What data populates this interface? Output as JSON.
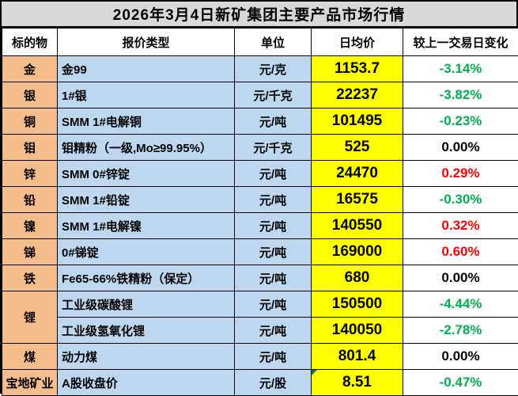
{
  "title": "2026年3月4日新矿集团主要产品市场行情",
  "colors": {
    "title_bg": "#d9d9d9",
    "subject_col_bg": "#f5bd8b",
    "type_unit_col_bg": "#bdd7ee",
    "price_col_bg": "#ffff00",
    "change_negative": "#00b050",
    "change_positive": "#ff0000",
    "change_zero": "#000000",
    "cell_flag": "#1e7145"
  },
  "table": {
    "headers": {
      "subject": "标的物",
      "type": "报价类型",
      "unit": "单位",
      "price": "日均价",
      "change": "较上一交易日变化"
    },
    "rows": [
      {
        "subject": "金",
        "type": "金99",
        "unit": "元/克",
        "price": "1153.7",
        "change": "-3.14%",
        "trend": "down"
      },
      {
        "subject": "银",
        "type": "1#银",
        "unit": "元/千克",
        "price": "22237",
        "change": "-3.82%",
        "trend": "down"
      },
      {
        "subject": "铜",
        "type": "SMM 1#电解铜",
        "unit": "元/吨",
        "price": "101495",
        "change": "-0.23%",
        "trend": "down"
      },
      {
        "subject": "钼",
        "type": "钼精粉（一级,Mo≥99.95%）",
        "unit": "元/千克",
        "price": "525",
        "change": "0.00%",
        "trend": "flat"
      },
      {
        "subject": "锌",
        "type": "SMM 0#锌锭",
        "unit": "元/吨",
        "price": "24470",
        "change": "0.29%",
        "trend": "up"
      },
      {
        "subject": "铅",
        "type": "SMM 1#铅锭",
        "unit": "元/吨",
        "price": "16575",
        "change": "-0.30%",
        "trend": "down"
      },
      {
        "subject": "镍",
        "type": "SMM 1#电解镍",
        "unit": "元/吨",
        "price": "140550",
        "change": "0.32%",
        "trend": "up"
      },
      {
        "subject": "锑",
        "type": "0#锑锭",
        "unit": "元/吨",
        "price": "169000",
        "change": "0.60%",
        "trend": "up"
      },
      {
        "subject": "铁",
        "type": "Fe65-66%铁精粉（保定）",
        "unit": "元/吨",
        "price": "680",
        "change": "0.00%",
        "trend": "flat"
      },
      {
        "subject": "锂",
        "type": "工业级碳酸锂",
        "unit": "元/吨",
        "price": "150500",
        "change": "-4.44%",
        "trend": "down"
      },
      {
        "subject": "锂",
        "type": "工业级氢氧化锂",
        "unit": "元/吨",
        "price": "140050",
        "change": "-2.78%",
        "trend": "down"
      },
      {
        "subject": "煤",
        "type": "动力煤",
        "unit": "元/吨",
        "price": "801.4",
        "change": "0.00%",
        "trend": "flat"
      },
      {
        "subject": "宝地矿业",
        "type": "A股收盘价",
        "unit": "元/股",
        "price": "8.51",
        "change": "-0.47%",
        "trend": "down",
        "has_flag": true
      }
    ]
  }
}
